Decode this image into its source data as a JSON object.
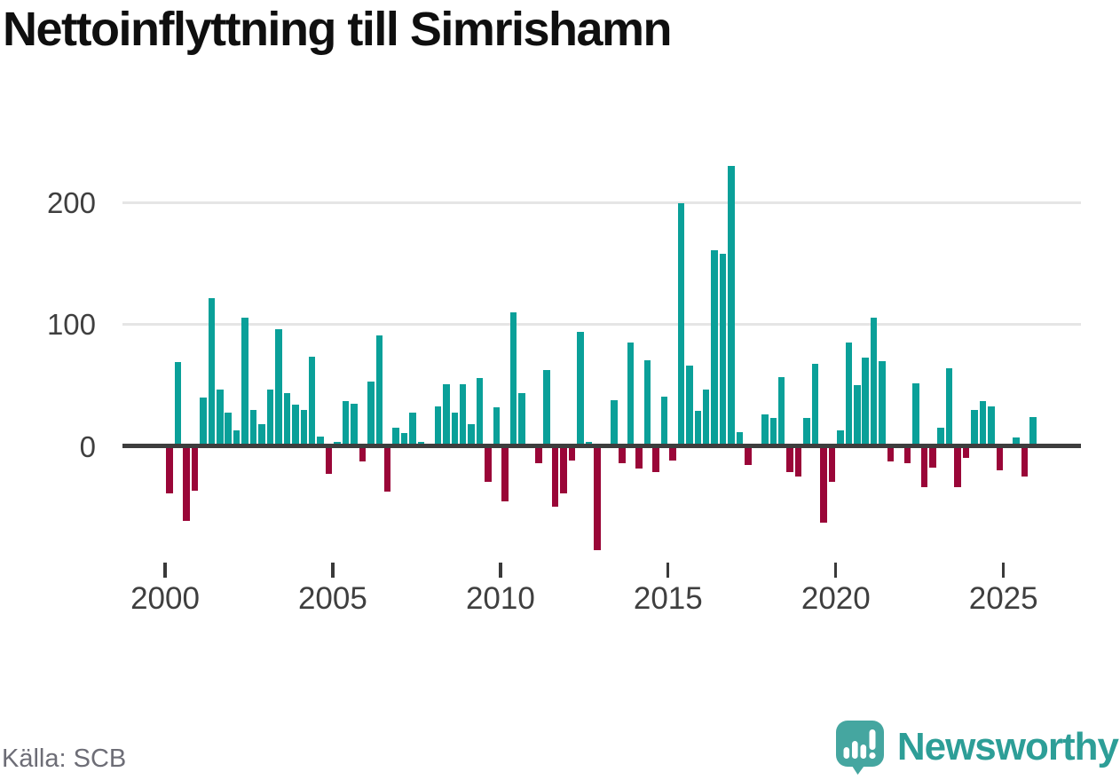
{
  "title": "Nettoinflyttning till Simrishamn",
  "source": "Källa: SCB",
  "branding": {
    "logo_text": "Newsworthy",
    "logo_icon": "newsworthy-speech-bubble-bar-chart-icon"
  },
  "colors": {
    "positive_bar": "#0aa099",
    "negative_bar": "#9a0638",
    "axis_line": "#3d3d3d",
    "gridline": "#e5e5e5",
    "tick_label": "#3f3f3f",
    "title_text": "#0f0f0f",
    "source_text": "#6d6d76",
    "brand_teal": "#2d9e97",
    "logo_icon_teal": "#45a6a0",
    "background": "#ffffff"
  },
  "chart_data": {
    "type": "bar",
    "title": "Nettoinflyttning till Simrishamn",
    "frequency": "quarterly",
    "start": "2000Q1",
    "end": "2025Q4",
    "xlabel": "",
    "ylabel": "",
    "x_tick_labels": [
      "2000",
      "2005",
      "2010",
      "2015",
      "2020",
      "2025"
    ],
    "y_ticks": [
      0,
      100,
      200
    ],
    "ylim": [
      -90,
      240
    ],
    "grid": "horizontal",
    "legend": "none",
    "positive_color": "#0aa099",
    "negative_color": "#9a0638",
    "quarters": [
      {
        "year": 2000,
        "values": [
          -37,
          69,
          -60,
          -35
        ]
      },
      {
        "year": 2001,
        "values": [
          40,
          122,
          47,
          28
        ]
      },
      {
        "year": 2002,
        "values": [
          13,
          106,
          30,
          18
        ]
      },
      {
        "year": 2003,
        "values": [
          47,
          96,
          44,
          34
        ]
      },
      {
        "year": 2004,
        "values": [
          30,
          74,
          8,
          -21
        ]
      },
      {
        "year": 2005,
        "values": [
          4,
          37,
          35,
          -11
        ]
      },
      {
        "year": 2006,
        "values": [
          53,
          91,
          -36,
          15
        ]
      },
      {
        "year": 2007,
        "values": [
          11,
          28,
          4,
          0
        ]
      },
      {
        "year": 2008,
        "values": [
          33,
          51,
          28,
          51
        ]
      },
      {
        "year": 2009,
        "values": [
          18,
          56,
          -28,
          32
        ]
      },
      {
        "year": 2010,
        "values": [
          -44,
          110,
          44,
          0
        ]
      },
      {
        "year": 2011,
        "values": [
          -12,
          63,
          -48,
          -37
        ]
      },
      {
        "year": 2012,
        "values": [
          -10,
          94,
          4,
          -84
        ]
      },
      {
        "year": 2013,
        "values": [
          0,
          38,
          -12,
          85
        ]
      },
      {
        "year": 2014,
        "values": [
          -17,
          71,
          -20,
          41
        ]
      },
      {
        "year": 2015,
        "values": [
          -10,
          200,
          66,
          29
        ]
      },
      {
        "year": 2016,
        "values": [
          47,
          161,
          158,
          230
        ]
      },
      {
        "year": 2017,
        "values": [
          12,
          -14,
          0,
          26
        ]
      },
      {
        "year": 2018,
        "values": [
          23,
          57,
          -20,
          -23
        ]
      },
      {
        "year": 2019,
        "values": [
          23,
          68,
          -61,
          -28
        ]
      },
      {
        "year": 2020,
        "values": [
          13,
          85,
          50,
          73
        ]
      },
      {
        "year": 2021,
        "values": [
          106,
          70,
          -11,
          2
        ]
      },
      {
        "year": 2022,
        "values": [
          -12,
          52,
          -32,
          -16
        ]
      },
      {
        "year": 2023,
        "values": [
          15,
          64,
          -32,
          -8
        ]
      },
      {
        "year": 2024,
        "values": [
          30,
          37,
          33,
          -18
        ]
      },
      {
        "year": 2025,
        "values": [
          2,
          7,
          -23,
          24
        ]
      }
    ]
  }
}
